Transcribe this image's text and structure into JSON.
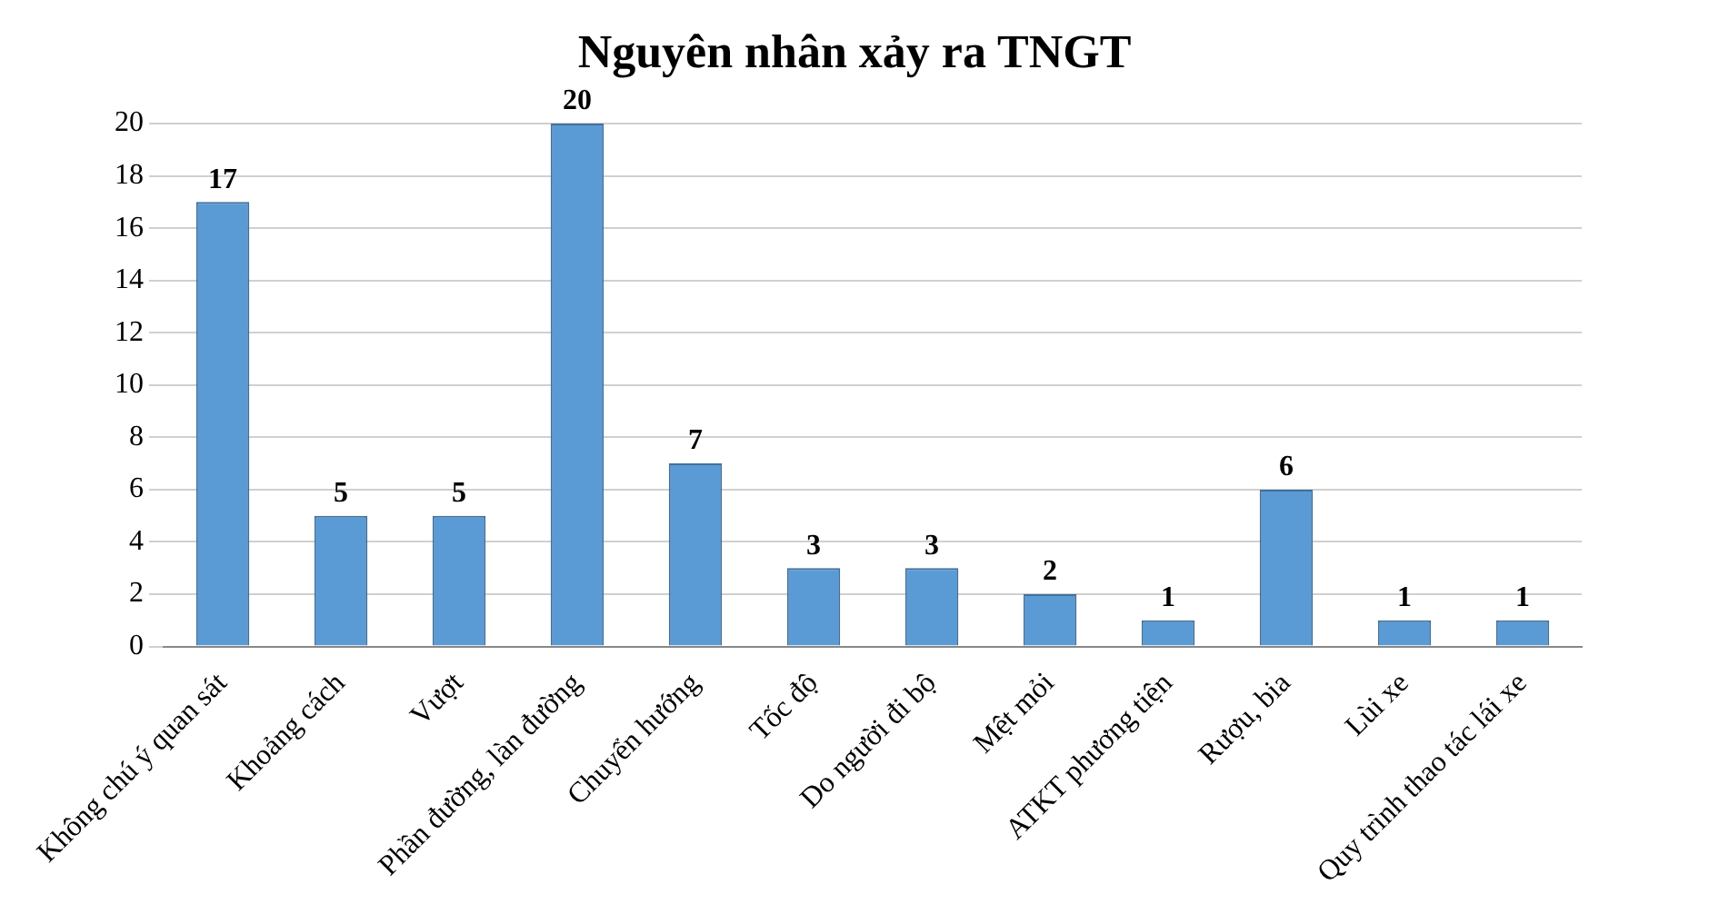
{
  "chart_data": {
    "type": "bar",
    "title": "Nguyên nhân xảy ra TNGT",
    "categories": [
      "Không chú ý quan sát",
      "Khoảng cách",
      "Vượt",
      "Phần đường, làn đường",
      "Chuyển hướng",
      "Tốc độ",
      "Do người đi bộ",
      "Mệt mỏi",
      "ATKT phương tiện",
      "Rượu, bia",
      "Lùi xe",
      "Quy trình thao tác lái xe"
    ],
    "values": [
      17,
      5,
      5,
      20,
      7,
      3,
      3,
      2,
      1,
      6,
      1,
      1
    ],
    "color": "#5b9bd5",
    "ylim": [
      0,
      20
    ],
    "yticks": [
      0,
      2,
      4,
      6,
      8,
      10,
      12,
      14,
      16,
      18,
      20
    ],
    "grid": "y",
    "data_labels": true
  }
}
